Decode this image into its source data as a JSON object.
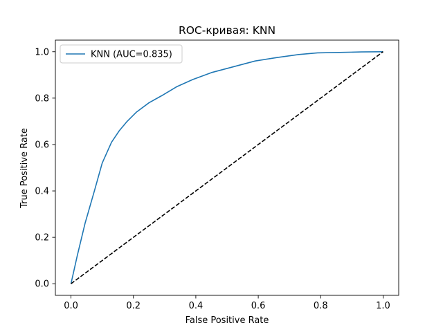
{
  "chart_data": {
    "type": "line",
    "title": "ROC-кривая: KNN",
    "xlabel": "False Positive Rate",
    "ylabel": "True Positive Rate",
    "xlim": [
      -0.05,
      1.05
    ],
    "ylim": [
      -0.05,
      1.05
    ],
    "xticks": [
      0.0,
      0.2,
      0.4,
      0.6,
      0.8,
      1.0
    ],
    "yticks": [
      0.0,
      0.2,
      0.4,
      0.6,
      0.8,
      1.0
    ],
    "xtick_labels": [
      "0.0",
      "0.2",
      "0.4",
      "0.6",
      "0.8",
      "1.0"
    ],
    "ytick_labels": [
      "0.0",
      "0.2",
      "0.4",
      "0.6",
      "0.8",
      "1.0"
    ],
    "grid": false,
    "legend_position": "top-left",
    "series": [
      {
        "name": "KNN (AUC=0.835)",
        "color": "#1f77b4",
        "style": "solid",
        "x": [
          0.0,
          0.02,
          0.045,
          0.075,
          0.1,
          0.13,
          0.155,
          0.18,
          0.21,
          0.25,
          0.29,
          0.34,
          0.39,
          0.45,
          0.52,
          0.59,
          0.66,
          0.73,
          0.79,
          0.86,
          0.93,
          1.0
        ],
        "y": [
          0.0,
          0.12,
          0.26,
          0.4,
          0.52,
          0.61,
          0.66,
          0.7,
          0.74,
          0.78,
          0.81,
          0.85,
          0.88,
          0.91,
          0.935,
          0.96,
          0.975,
          0.988,
          0.995,
          0.997,
          0.999,
          1.0
        ]
      },
      {
        "color": "#000000",
        "style": "dashed",
        "x": [
          0.0,
          1.0
        ],
        "y": [
          0.0,
          1.0
        ]
      }
    ]
  }
}
